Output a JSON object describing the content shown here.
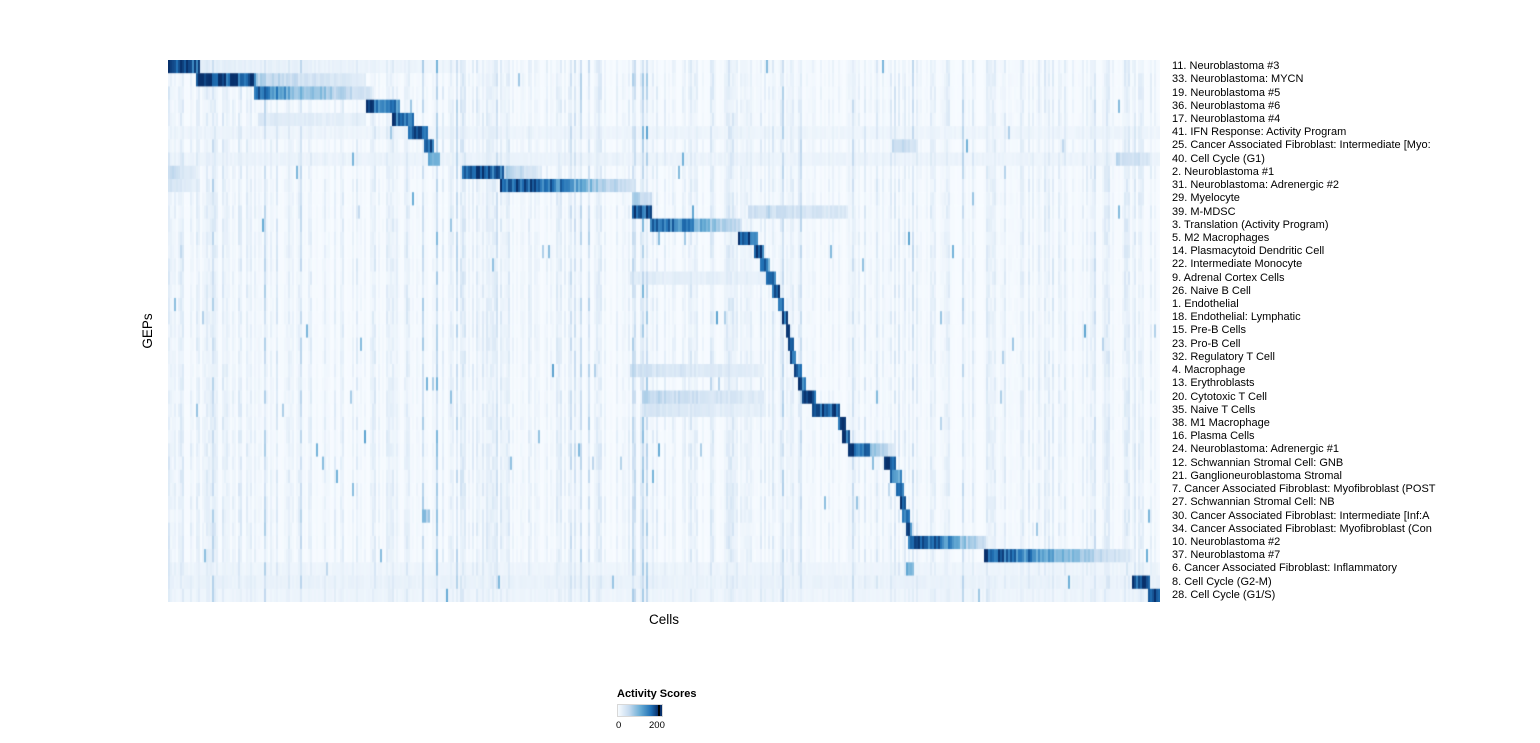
{
  "chart_data": {
    "type": "heatmap",
    "xlabel": "Cells",
    "ylabel": "GEPs",
    "colormap": "Blues",
    "colormap_stops": [
      "#f7fbff",
      "#c6dbef",
      "#6baed6",
      "#2171b5",
      "#08306b"
    ],
    "legend": {
      "title": "Activity Scores",
      "min_label": "0",
      "max_label": "200",
      "range": [
        0,
        200
      ]
    },
    "block_format": "each block is [x_start_fraction, x_end_fraction, intensity_start, intensity_end] with intensity 0-1 mapping to activity score 0-250 (clipped at colormap max)",
    "rows": [
      {
        "label": "11. Neuroblastoma #3",
        "blocks": [
          [
            0.0,
            0.033,
            1.0,
            0.85
          ],
          [
            0.033,
            0.3,
            0.1,
            0.04
          ]
        ]
      },
      {
        "label": "33. Neuroblastoma: MYCN",
        "blocks": [
          [
            0.028,
            0.088,
            1.0,
            0.9
          ],
          [
            0.088,
            0.2,
            0.3,
            0.1
          ]
        ]
      },
      {
        "label": "19. Neuroblastoma #5",
        "blocks": [
          [
            0.086,
            0.122,
            0.85,
            0.6
          ],
          [
            0.122,
            0.205,
            0.5,
            0.18
          ]
        ]
      },
      {
        "label": "36. Neuroblastoma #6",
        "blocks": [
          [
            0.2,
            0.233,
            0.9,
            0.7
          ]
        ]
      },
      {
        "label": "17. Neuroblastoma #4",
        "blocks": [
          [
            0.226,
            0.248,
            0.9,
            0.75
          ],
          [
            0.09,
            0.2,
            0.14,
            0.08
          ]
        ]
      },
      {
        "label": "41. IFN Response: Activity Program",
        "blocks": [
          [
            0.242,
            0.262,
            1.0,
            0.85
          ],
          [
            0.0,
            1.0,
            0.05,
            0.05
          ]
        ]
      },
      {
        "label": "25. Cancer Associated Fibroblast: Intermediate [Myo:",
        "blocks": [
          [
            0.258,
            0.268,
            0.95,
            0.8
          ],
          [
            0.73,
            0.755,
            0.3,
            0.18
          ]
        ]
      },
      {
        "label": "40. Cell Cycle (G1)",
        "blocks": [
          [
            0.263,
            0.274,
            0.55,
            0.4
          ],
          [
            0.0,
            1.0,
            0.06,
            0.06
          ],
          [
            0.955,
            0.99,
            0.25,
            0.18
          ]
        ]
      },
      {
        "label": "2. Neuroblastoma #1",
        "blocks": [
          [
            0.296,
            0.338,
            1.0,
            0.8
          ],
          [
            0.338,
            0.378,
            0.35,
            0.1
          ],
          [
            0.0,
            0.03,
            0.25,
            0.12
          ]
        ]
      },
      {
        "label": "31. Neuroblastoma: Adrenergic #2",
        "blocks": [
          [
            0.335,
            0.4,
            0.95,
            0.7
          ],
          [
            0.4,
            0.468,
            0.6,
            0.18
          ],
          [
            0.0,
            0.03,
            0.18,
            0.08
          ]
        ]
      },
      {
        "label": "29. Myelocyte",
        "blocks": [
          [
            0.468,
            0.487,
            0.35,
            0.22
          ]
        ]
      },
      {
        "label": "39. M-MDSC",
        "blocks": [
          [
            0.467,
            0.488,
            1.0,
            0.85
          ],
          [
            0.585,
            0.685,
            0.24,
            0.15
          ]
        ]
      },
      {
        "label": "3. Translation (Activity Program)",
        "blocks": [
          [
            0.486,
            0.535,
            0.9,
            0.6
          ],
          [
            0.535,
            0.578,
            0.5,
            0.22
          ]
        ]
      },
      {
        "label": "5. M2 Macrophages",
        "blocks": [
          [
            0.574,
            0.594,
            1.0,
            0.85
          ]
        ]
      },
      {
        "label": "14. Plasmacytoid Dendritic Cell",
        "blocks": [
          [
            0.591,
            0.6,
            0.95,
            0.85
          ]
        ]
      },
      {
        "label": "22. Intermediate Monocyte",
        "blocks": [
          [
            0.597,
            0.605,
            0.95,
            0.85
          ]
        ]
      },
      {
        "label": "9. Adrenal Cortex Cells",
        "blocks": [
          [
            0.602,
            0.612,
            0.9,
            0.8
          ],
          [
            0.465,
            0.6,
            0.12,
            0.07
          ]
        ]
      },
      {
        "label": "26. Naive B Cell",
        "blocks": [
          [
            0.609,
            0.617,
            0.95,
            0.85
          ]
        ]
      },
      {
        "label": "1. Endothelial",
        "blocks": [
          [
            0.614,
            0.621,
            0.95,
            0.85
          ]
        ]
      },
      {
        "label": "18. Endothelial: Lymphatic",
        "blocks": [
          [
            0.619,
            0.625,
            0.9,
            0.8
          ]
        ]
      },
      {
        "label": "15. Pre-B Cells",
        "blocks": [
          [
            0.622,
            0.628,
            0.9,
            0.8
          ]
        ]
      },
      {
        "label": "23. Pro-B Cell",
        "blocks": [
          [
            0.625,
            0.631,
            0.9,
            0.8
          ]
        ]
      },
      {
        "label": "32. Regulatory T Cell",
        "blocks": [
          [
            0.628,
            0.634,
            0.9,
            0.8
          ]
        ]
      },
      {
        "label": "4. Macrophage",
        "blocks": [
          [
            0.631,
            0.639,
            0.95,
            0.85
          ],
          [
            0.465,
            0.6,
            0.2,
            0.1
          ]
        ]
      },
      {
        "label": "13. Erythroblasts",
        "blocks": [
          [
            0.636,
            0.643,
            0.9,
            0.8
          ]
        ]
      },
      {
        "label": "20. Cytotoxic T Cell",
        "blocks": [
          [
            0.64,
            0.653,
            0.95,
            0.85
          ],
          [
            0.48,
            0.6,
            0.28,
            0.12
          ]
        ]
      },
      {
        "label": "35. Naive T Cells",
        "blocks": [
          [
            0.65,
            0.678,
            1.0,
            0.85
          ],
          [
            0.48,
            0.6,
            0.18,
            0.08
          ]
        ]
      },
      {
        "label": "38. M1 Macrophage",
        "blocks": [
          [
            0.675,
            0.683,
            0.95,
            0.8
          ]
        ]
      },
      {
        "label": "16. Plasma Cells",
        "blocks": [
          [
            0.68,
            0.687,
            0.9,
            0.8
          ]
        ]
      },
      {
        "label": "24. Neuroblastoma: Adrenergic #1",
        "blocks": [
          [
            0.685,
            0.708,
            0.95,
            0.7
          ],
          [
            0.708,
            0.732,
            0.5,
            0.15
          ]
        ]
      },
      {
        "label": "12. Schwannian Stromal Cell: GNB",
        "blocks": [
          [
            0.722,
            0.733,
            1.0,
            0.85
          ]
        ]
      },
      {
        "label": "21. Ganglioneuroblastoma Stromal",
        "blocks": [
          [
            0.728,
            0.739,
            0.8,
            0.6
          ]
        ]
      },
      {
        "label": "7. Cancer Associated Fibroblast: Myofibroblast (POST",
        "blocks": [
          [
            0.734,
            0.742,
            0.9,
            0.75
          ]
        ]
      },
      {
        "label": "27. Schwannian Stromal Cell: NB",
        "blocks": [
          [
            0.737,
            0.744,
            0.9,
            0.8
          ]
        ]
      },
      {
        "label": "30. Cancer Associated Fibroblast: Intermediate [Inf:A",
        "blocks": [
          [
            0.74,
            0.747,
            0.9,
            0.8
          ],
          [
            0.257,
            0.264,
            0.45,
            0.3
          ]
        ]
      },
      {
        "label": "34. Cancer Associated Fibroblast: Myofibroblast (Con",
        "blocks": [
          [
            0.743,
            0.749,
            0.9,
            0.8
          ]
        ]
      },
      {
        "label": "10. Neuroblastoma #2",
        "blocks": [
          [
            0.745,
            0.79,
            0.95,
            0.7
          ],
          [
            0.79,
            0.825,
            0.55,
            0.18
          ]
        ]
      },
      {
        "label": "37. Neuroblastoma #7",
        "blocks": [
          [
            0.823,
            0.89,
            0.9,
            0.6
          ],
          [
            0.89,
            0.972,
            0.5,
            0.12
          ]
        ]
      },
      {
        "label": "6. Cancer Associated Fibroblast: Inflammatory",
        "blocks": [
          [
            0.744,
            0.753,
            0.55,
            0.4
          ],
          [
            0.0,
            1.0,
            0.05,
            0.05
          ]
        ]
      },
      {
        "label": "8. Cell Cycle (G2-M)",
        "blocks": [
          [
            0.971,
            0.99,
            1.0,
            0.9
          ],
          [
            0.0,
            1.0,
            0.07,
            0.07
          ]
        ]
      },
      {
        "label": "28. Cell Cycle (G1/S)",
        "blocks": [
          [
            0.987,
            1.0,
            1.0,
            0.95
          ],
          [
            0.0,
            1.0,
            0.05,
            0.05
          ]
        ]
      }
    ]
  }
}
